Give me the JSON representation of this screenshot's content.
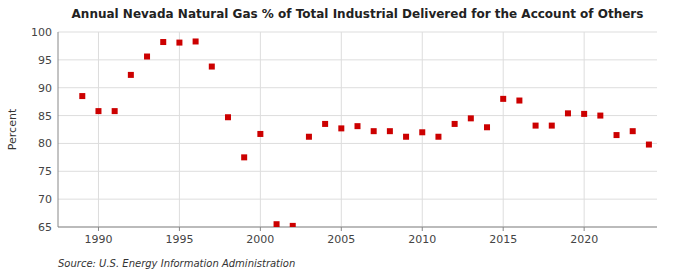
{
  "chart_data": {
    "type": "scatter",
    "title": "Annual Nevada Natural Gas % of Total Industrial Delivered for the Account of Others",
    "ylabel": "Percent",
    "source": "Source: U.S. Energy Information Administration",
    "color": "#cc0000",
    "marker": "square",
    "grid": true,
    "xlim": [
      1987.5,
      2024.5
    ],
    "ylim": [
      65,
      100
    ],
    "xticks": [
      1990,
      1995,
      2000,
      2005,
      2010,
      2015,
      2020
    ],
    "yticks": [
      65,
      70,
      75,
      80,
      85,
      90,
      95,
      100
    ],
    "x": [
      1989,
      1990,
      1991,
      1992,
      1993,
      1994,
      1995,
      1996,
      1997,
      1998,
      1999,
      2000,
      2001,
      2002,
      2003,
      2004,
      2005,
      2006,
      2007,
      2008,
      2009,
      2010,
      2011,
      2012,
      2013,
      2014,
      2015,
      2016,
      2017,
      2018,
      2019,
      2020,
      2021,
      2022,
      2023,
      2024
    ],
    "values": [
      88.5,
      85.8,
      85.8,
      92.3,
      95.6,
      98.2,
      98.1,
      98.3,
      93.8,
      84.7,
      77.5,
      81.7,
      65.5,
      65.2,
      81.2,
      83.5,
      82.7,
      83.1,
      82.2,
      82.2,
      81.2,
      82.0,
      81.2,
      83.5,
      84.5,
      82.9,
      88.0,
      87.7,
      83.2,
      83.2,
      85.4,
      85.3,
      85.0,
      81.5,
      82.2,
      79.8
    ]
  }
}
